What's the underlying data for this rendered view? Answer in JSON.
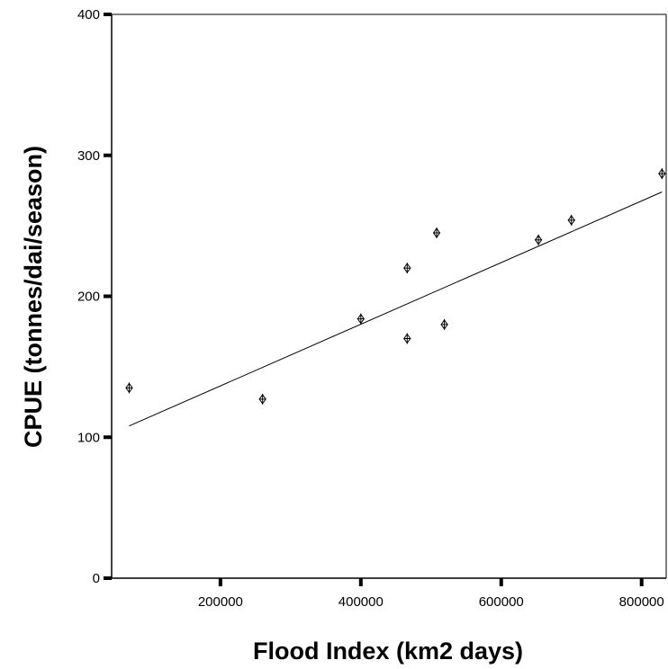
{
  "chart_data": {
    "type": "scatter",
    "title": "",
    "xlabel": "Flood Index (km2 days)",
    "ylabel": "CPUE (tonnes/dai/season)",
    "xlim": [
      45000,
      835000
    ],
    "ylim": [
      0,
      400
    ],
    "x_ticks": [
      200000,
      400000,
      600000,
      800000
    ],
    "y_ticks": [
      0,
      100,
      200,
      300,
      400
    ],
    "grid": false,
    "legend": "none",
    "colors": {
      "marker": "#000000",
      "line": "#000000"
    },
    "points": [
      {
        "x": 70000,
        "y": 135
      },
      {
        "x": 260000,
        "y": 127
      },
      {
        "x": 400000,
        "y": 184
      },
      {
        "x": 466000,
        "y": 220
      },
      {
        "x": 466000,
        "y": 170
      },
      {
        "x": 508000,
        "y": 245
      },
      {
        "x": 519000,
        "y": 180
      },
      {
        "x": 653000,
        "y": 240
      },
      {
        "x": 700000,
        "y": 254
      },
      {
        "x": 829000,
        "y": 287
      }
    ],
    "fit_line": {
      "x": [
        70000,
        829000
      ],
      "y": [
        108,
        274
      ]
    }
  }
}
